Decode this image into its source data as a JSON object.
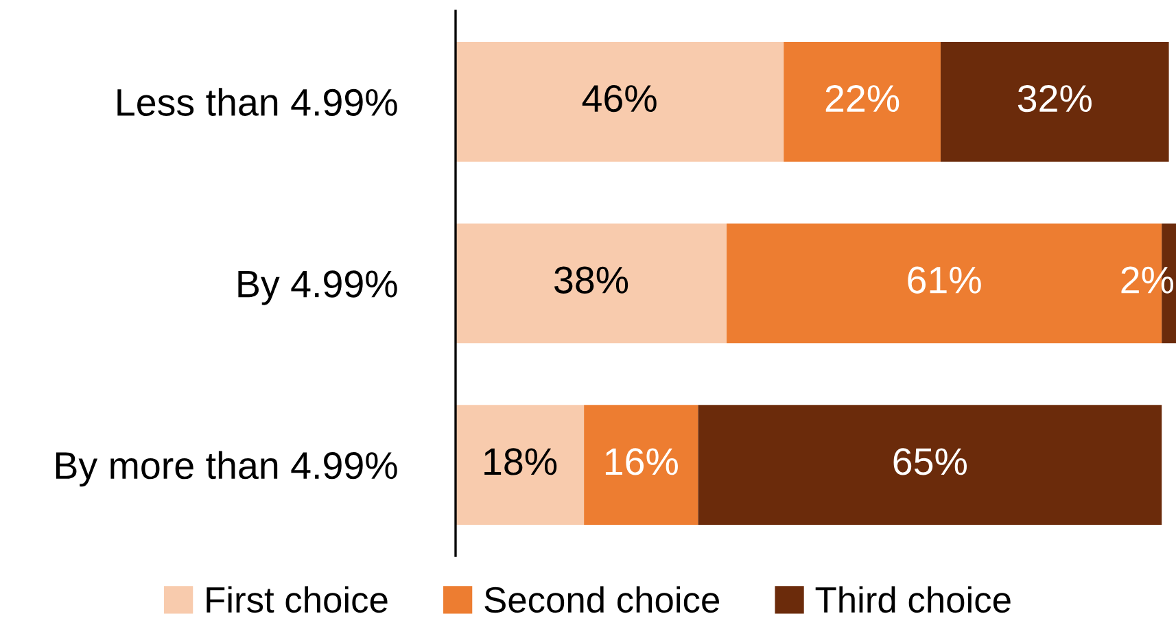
{
  "chart_data": {
    "type": "bar",
    "orientation": "horizontal",
    "stacked": true,
    "categories": [
      "Less than 4.99%",
      "By 4.99%",
      "By more than 4.99%"
    ],
    "series": [
      {
        "name": "First choice",
        "color": "#f8cbad",
        "values": [
          46,
          38,
          18
        ],
        "value_labels": [
          "46%",
          "38%",
          "18%"
        ]
      },
      {
        "name": "Second choice",
        "color": "#ed7d31",
        "values": [
          22,
          61,
          16
        ],
        "value_labels": [
          "22%",
          "61%",
          "16%"
        ]
      },
      {
        "name": "Third choice",
        "color": "#6b2b0b",
        "values": [
          32,
          2,
          65
        ],
        "value_labels": [
          "32%",
          "2%",
          "65%"
        ]
      }
    ],
    "xlim": [
      0,
      101
    ],
    "legend": "bottom",
    "tick_labels": "y"
  }
}
